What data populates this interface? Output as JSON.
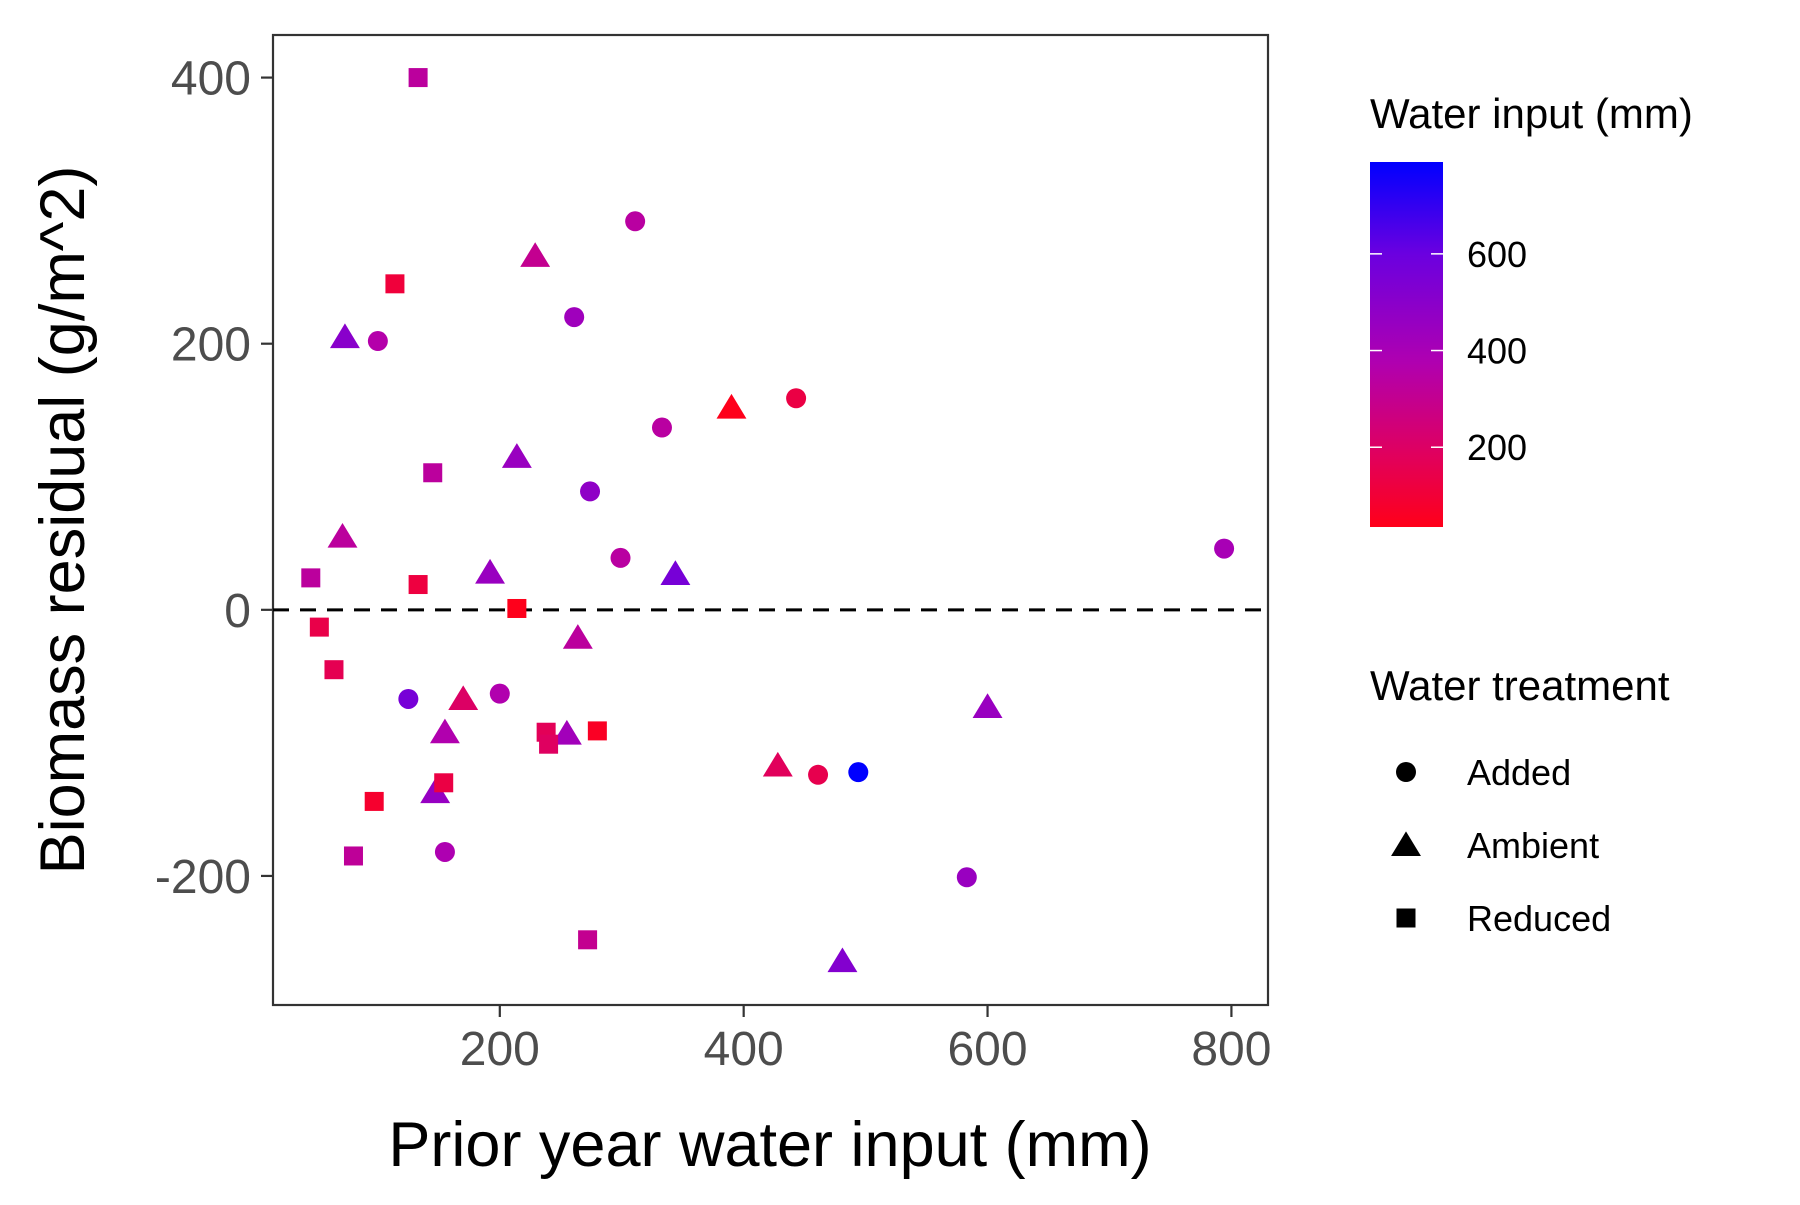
{
  "chart_data": {
    "type": "scatter",
    "title": "",
    "xlabel": "Prior year water input (mm)",
    "ylabel": "Biomass residual (g/m^2)",
    "xlim": [
      14,
      830
    ],
    "ylim": [
      -297,
      432
    ],
    "xticks": [
      200,
      400,
      600,
      800
    ],
    "yticks": [
      400,
      200,
      0,
      -200
    ],
    "xtick_labels": [
      "200",
      "400",
      "600",
      "800"
    ],
    "ytick_labels": [
      "400",
      "200",
      "0",
      "-200"
    ],
    "reference_line": {
      "y": 0,
      "style": "dashed"
    },
    "grid": false,
    "color_legend": {
      "title": "Water input (mm)",
      "min": 35,
      "max": 790,
      "low_color": "#ff0019",
      "high_color": "#0000ff",
      "breaks": [
        200,
        400,
        600
      ],
      "break_labels": [
        "200",
        "400",
        "600"
      ]
    },
    "shape_legend": {
      "title": "Water treatment",
      "entries": [
        {
          "label": "Added",
          "shape": "circle"
        },
        {
          "label": "Ambient",
          "shape": "triangle"
        },
        {
          "label": "Reduced",
          "shape": "square"
        }
      ]
    },
    "points": [
      {
        "treatment": "Added",
        "x": 100,
        "y": 202,
        "water_input": 360
      },
      {
        "treatment": "Added",
        "x": 125,
        "y": -67,
        "water_input": 560
      },
      {
        "treatment": "Added",
        "x": 155,
        "y": -182,
        "water_input": 380
      },
      {
        "treatment": "Added",
        "x": 200,
        "y": -63,
        "water_input": 370
      },
      {
        "treatment": "Added",
        "x": 261,
        "y": 220,
        "water_input": 430
      },
      {
        "treatment": "Added",
        "x": 274,
        "y": 89,
        "water_input": 480
      },
      {
        "treatment": "Added",
        "x": 299,
        "y": 39,
        "water_input": 340
      },
      {
        "treatment": "Added",
        "x": 311,
        "y": 292,
        "water_input": 340
      },
      {
        "treatment": "Added",
        "x": 333,
        "y": 137,
        "water_input": 340
      },
      {
        "treatment": "Added",
        "x": 443,
        "y": 159,
        "water_input": 130
      },
      {
        "treatment": "Added",
        "x": 461,
        "y": -124,
        "water_input": 150
      },
      {
        "treatment": "Added",
        "x": 494,
        "y": -122,
        "water_input": 790
      },
      {
        "treatment": "Added",
        "x": 583,
        "y": -201,
        "water_input": 450
      },
      {
        "treatment": "Added",
        "x": 794,
        "y": 46,
        "water_input": 400
      },
      {
        "treatment": "Ambient",
        "x": 73,
        "y": 205,
        "water_input": 500
      },
      {
        "treatment": "Ambient",
        "x": 71,
        "y": 55,
        "water_input": 330
      },
      {
        "treatment": "Ambient",
        "x": 147,
        "y": -137,
        "water_input": 460
      },
      {
        "treatment": "Ambient",
        "x": 155,
        "y": -92,
        "water_input": 370
      },
      {
        "treatment": "Ambient",
        "x": 170,
        "y": -67,
        "water_input": 200
      },
      {
        "treatment": "Ambient",
        "x": 192,
        "y": 28,
        "water_input": 450
      },
      {
        "treatment": "Ambient",
        "x": 214,
        "y": 115,
        "water_input": 450
      },
      {
        "treatment": "Ambient",
        "x": 229,
        "y": 266,
        "water_input": 300
      },
      {
        "treatment": "Ambient",
        "x": 255,
        "y": -93,
        "water_input": 420
      },
      {
        "treatment": "Ambient",
        "x": 264,
        "y": -21,
        "water_input": 330
      },
      {
        "treatment": "Ambient",
        "x": 344,
        "y": 27,
        "water_input": 560
      },
      {
        "treatment": "Ambient",
        "x": 390,
        "y": 152,
        "water_input": 40
      },
      {
        "treatment": "Ambient",
        "x": 428,
        "y": -117,
        "water_input": 180
      },
      {
        "treatment": "Ambient",
        "x": 481,
        "y": -264,
        "water_input": 520
      },
      {
        "treatment": "Ambient",
        "x": 600,
        "y": -73,
        "water_input": 450
      },
      {
        "treatment": "Reduced",
        "x": 45,
        "y": 24,
        "water_input": 330
      },
      {
        "treatment": "Reduced",
        "x": 52,
        "y": -13,
        "water_input": 140
      },
      {
        "treatment": "Reduced",
        "x": 64,
        "y": -45,
        "water_input": 160
      },
      {
        "treatment": "Reduced",
        "x": 80,
        "y": -185,
        "water_input": 320
      },
      {
        "treatment": "Reduced",
        "x": 97,
        "y": -144,
        "water_input": 80
      },
      {
        "treatment": "Reduced",
        "x": 114,
        "y": 245,
        "water_input": 110
      },
      {
        "treatment": "Reduced",
        "x": 133,
        "y": 400,
        "water_input": 330
      },
      {
        "treatment": "Reduced",
        "x": 133,
        "y": 19,
        "water_input": 120
      },
      {
        "treatment": "Reduced",
        "x": 145,
        "y": 103,
        "water_input": 330
      },
      {
        "treatment": "Reduced",
        "x": 154,
        "y": -130,
        "water_input": 130
      },
      {
        "treatment": "Reduced",
        "x": 214,
        "y": 1,
        "water_input": 40
      },
      {
        "treatment": "Reduced",
        "x": 238,
        "y": -92,
        "water_input": 170
      },
      {
        "treatment": "Reduced",
        "x": 240,
        "y": -101,
        "water_input": 190
      },
      {
        "treatment": "Reduced",
        "x": 272,
        "y": -248,
        "water_input": 300
      },
      {
        "treatment": "Reduced",
        "x": 280,
        "y": -91,
        "water_input": 60
      }
    ]
  }
}
